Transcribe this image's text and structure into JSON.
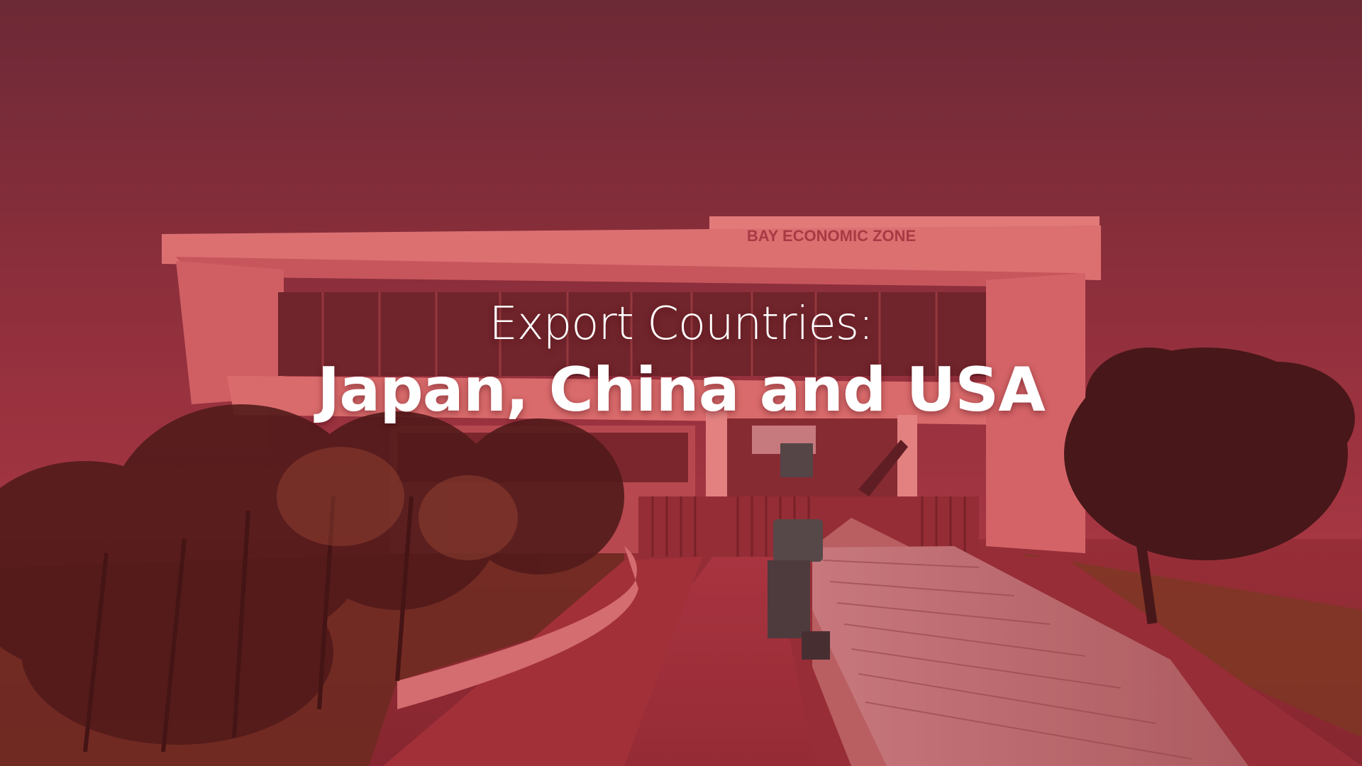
{
  "sign": {
    "text": "BAY ECONOMIC ZONE"
  },
  "caption": {
    "line1": "Export Countries:",
    "line2": "Japan, China and USA"
  },
  "colors": {
    "sky_top": "#5e2a36",
    "sky_bottom": "#b8414a",
    "overlay": "#c23344",
    "building": "#e07a7a",
    "foliage": "#3a1612",
    "road": "#9e3238",
    "text": "#ffffff"
  },
  "icons": {
    "truck": "truck-illustration",
    "trees": "tree-illustration"
  }
}
